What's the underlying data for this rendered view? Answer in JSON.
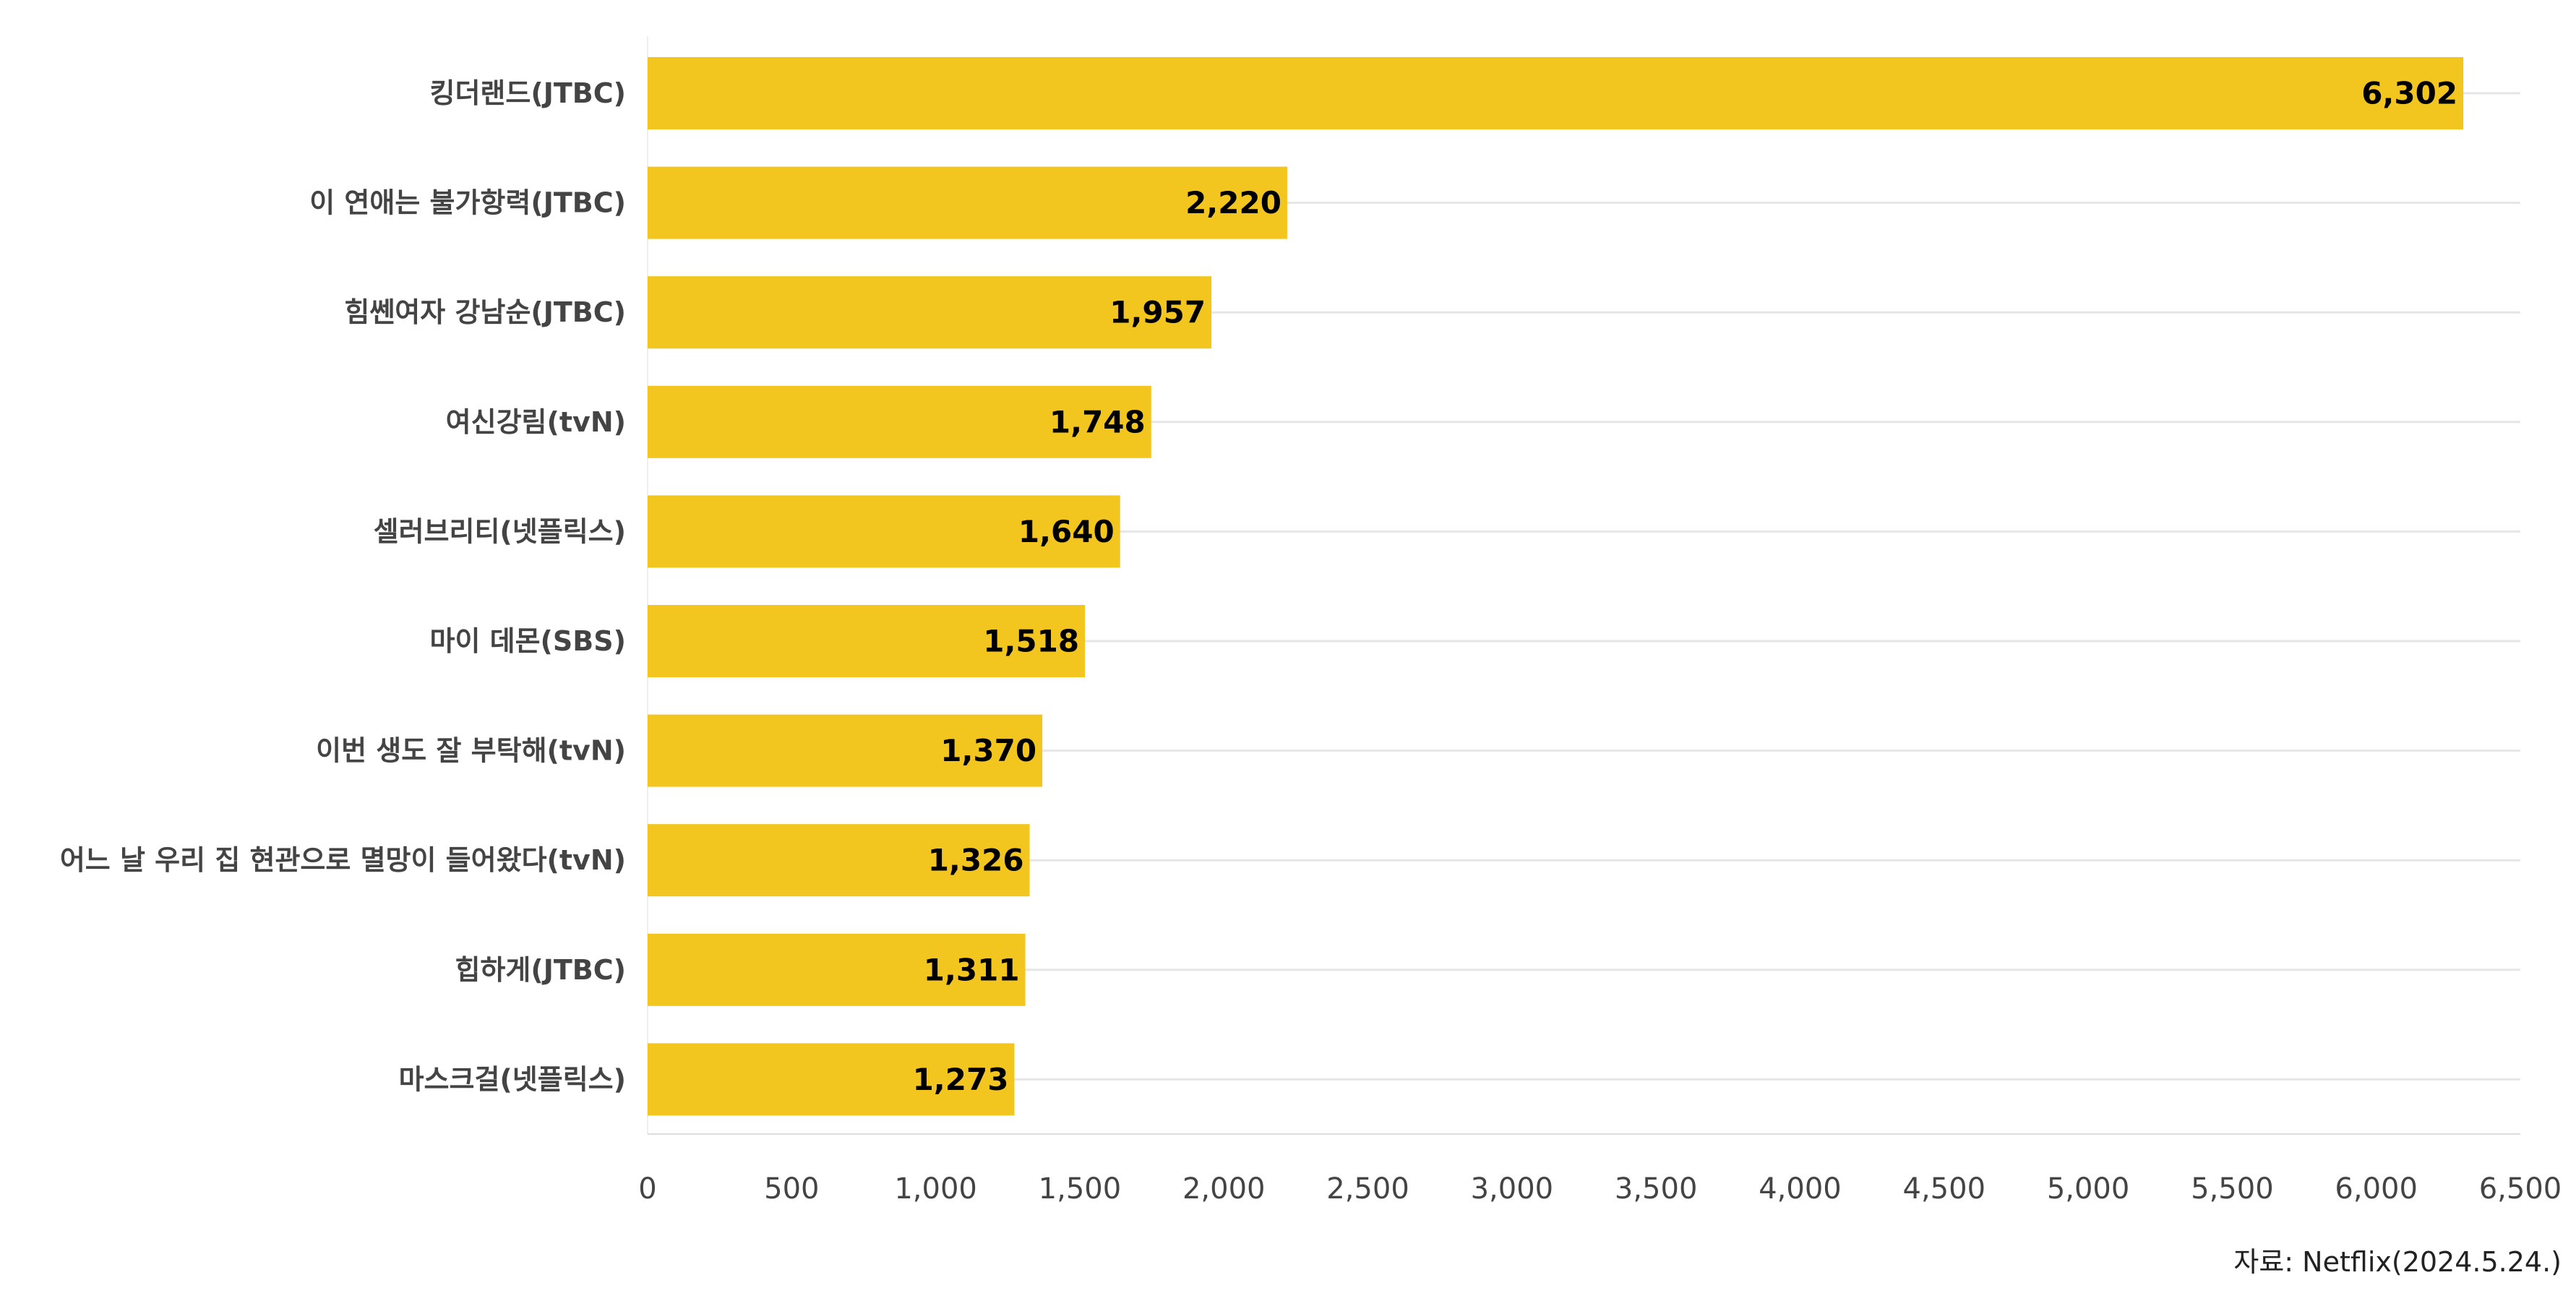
{
  "chart_data": {
    "type": "bar",
    "orientation": "horizontal",
    "categories": [
      "킹더랜드(JTBC)",
      "이 연애는 불가항력(JTBC)",
      "힘쎈여자 강남순(JTBC)",
      "여신강림(tvN)",
      "셀러브리티(넷플릭스)",
      "마이 데몬(SBS)",
      "이번 생도 잘 부탁해(tvN)",
      "어느 날 우리 집 현관으로 멸망이 들어왔다(tvN)",
      "힙하게(JTBC)",
      "마스크걸(넷플릭스)"
    ],
    "values": [
      6302,
      2220,
      1957,
      1748,
      1640,
      1518,
      1370,
      1326,
      1311,
      1273
    ],
    "value_labels": [
      "6,302",
      "2,220",
      "1,957",
      "1,748",
      "1,640",
      "1,518",
      "1,370",
      "1,326",
      "1,311",
      "1,273"
    ],
    "xlim": [
      0,
      6500
    ],
    "x_ticks": [
      0,
      500,
      1000,
      1500,
      2000,
      2500,
      3000,
      3500,
      4000,
      4500,
      5000,
      5500,
      6000,
      6500
    ],
    "x_tick_labels": [
      "0",
      "500",
      "1,000",
      "1,500",
      "2,000",
      "2,500",
      "3,000",
      "3,500",
      "4,000",
      "4,500",
      "5,000",
      "5,500",
      "6,000",
      "6,500"
    ],
    "bar_color": "#F2C61F",
    "grid": true,
    "grid_axis": "y",
    "title": "",
    "xlabel": "",
    "ylabel": ""
  },
  "source_note": "자료: Netflix(2024.5.24.)"
}
